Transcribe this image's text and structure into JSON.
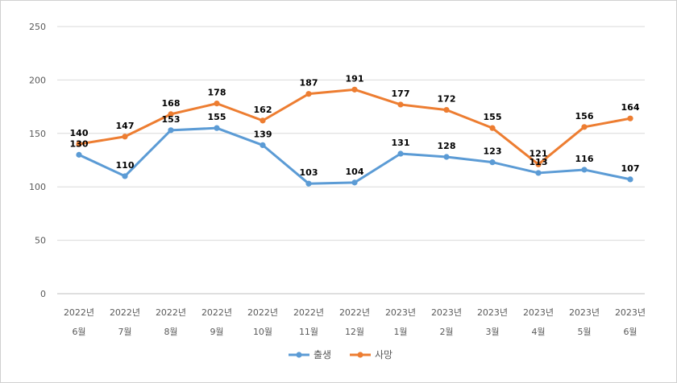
{
  "chart_data": {
    "type": "line",
    "categories": [
      [
        "2022년",
        "6월"
      ],
      [
        "2022년",
        "7월"
      ],
      [
        "2022년",
        "8월"
      ],
      [
        "2022년",
        "9월"
      ],
      [
        "2022년",
        "10월"
      ],
      [
        "2022년",
        "11월"
      ],
      [
        "2022년",
        "12월"
      ],
      [
        "2023년",
        "1월"
      ],
      [
        "2023년",
        "2월"
      ],
      [
        "2023년",
        "3월"
      ],
      [
        "2023년",
        "4월"
      ],
      [
        "2023년",
        "5월"
      ],
      [
        "2023년",
        "6월"
      ]
    ],
    "series": [
      {
        "name": "출생",
        "color": "#5B9BD5",
        "values": [
          130,
          110,
          153,
          155,
          139,
          103,
          104,
          131,
          128,
          123,
          113,
          116,
          107
        ]
      },
      {
        "name": "사망",
        "color": "#ED7D31",
        "values": [
          140,
          147,
          168,
          178,
          162,
          187,
          191,
          177,
          172,
          155,
          121,
          156,
          164
        ]
      }
    ],
    "ylim": [
      0,
      250
    ],
    "yticks": [
      0,
      50,
      100,
      150,
      200,
      250
    ],
    "grid": true,
    "legend": "bottom"
  }
}
